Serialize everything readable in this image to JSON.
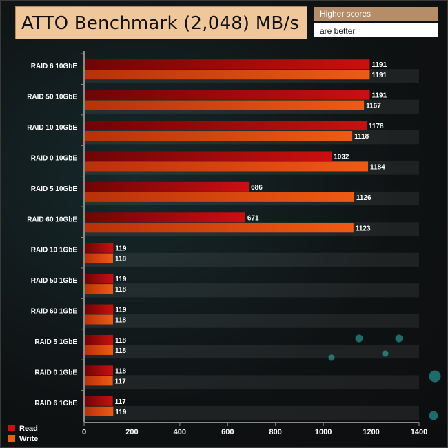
{
  "title": "ATTO Benchmark (2,048) MB/s",
  "note_higher": "Higher scores",
  "note_better": "are better",
  "colors": {
    "read": "#cc0f10",
    "write": "#ef5b12"
  },
  "chart_data": {
    "type": "bar",
    "orientation": "horizontal",
    "categories": [
      "RAID 6 10GbE",
      "RAID 50 10GbE",
      "RAID 10 10GbE",
      "RAID 0 10GbE",
      "RAID 5 10GbE",
      "RAID 60 10GbE",
      "RAID 10 1GbE",
      "RAID 50 1GbE",
      "RAID 60 1GbE",
      "RAID 5 1GbE",
      "RAID 0 1GbE",
      "RAID 6 1GbE"
    ],
    "series": [
      {
        "name": "Read",
        "values": [
          1191,
          1191,
          1178,
          1032,
          686,
          671,
          119,
          119,
          119,
          118,
          118,
          117
        ]
      },
      {
        "name": "Write",
        "values": [
          1191,
          1167,
          1118,
          1184,
          1126,
          1123,
          118,
          118,
          118,
          118,
          117,
          119
        ]
      }
    ],
    "xlim": [
      0,
      1400
    ],
    "xticks": [
      0,
      200,
      400,
      600,
      800,
      1000,
      1200,
      1400
    ],
    "legend_position": "bottom-left",
    "grid": false
  }
}
